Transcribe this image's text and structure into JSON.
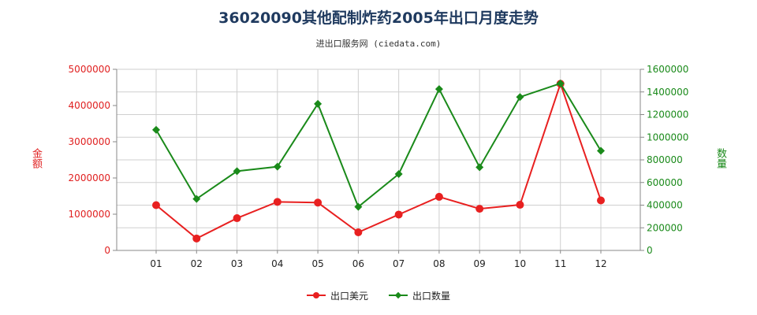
{
  "title": "36020090其他配制炸药2005年出口月度走势",
  "subtitle": "进出口服务网 (ciedata.com)",
  "chart_data": {
    "type": "line",
    "categories": [
      "01",
      "02",
      "03",
      "04",
      "05",
      "06",
      "07",
      "08",
      "09",
      "10",
      "11",
      "12"
    ],
    "left_axis": {
      "label": "金额",
      "ylim": [
        0,
        5000000
      ],
      "ticks": [
        0,
        1000000,
        2000000,
        3000000,
        4000000,
        5000000
      ],
      "tick_labels": [
        "0",
        "1000000",
        "2000000",
        "3000000",
        "4000000",
        "5000000"
      ],
      "color": "#e02020"
    },
    "right_axis": {
      "label": "数量",
      "ylim": [
        0,
        1600000
      ],
      "ticks": [
        0,
        200000,
        400000,
        600000,
        800000,
        1000000,
        1200000,
        1400000,
        1600000
      ],
      "tick_labels": [
        "0",
        "200000",
        "400000",
        "600000",
        "800000",
        "1000000",
        "1200000",
        "1400000",
        "1600000"
      ],
      "color": "#1a8a1a"
    },
    "series": [
      {
        "name": "出口美元",
        "axis": "left",
        "color": "#e82020",
        "marker": "circle",
        "values": [
          1250000,
          330000,
          890000,
          1340000,
          1320000,
          500000,
          990000,
          1480000,
          1150000,
          1260000,
          4600000,
          1380000
        ]
      },
      {
        "name": "出口数量",
        "axis": "right",
        "color": "#1a8a1a",
        "marker": "diamond",
        "values": [
          1065000,
          455000,
          700000,
          740000,
          1295000,
          385000,
          675000,
          1425000,
          735000,
          1355000,
          1475000,
          880000
        ]
      }
    ],
    "grid": true,
    "legend_position": "bottom-center"
  }
}
